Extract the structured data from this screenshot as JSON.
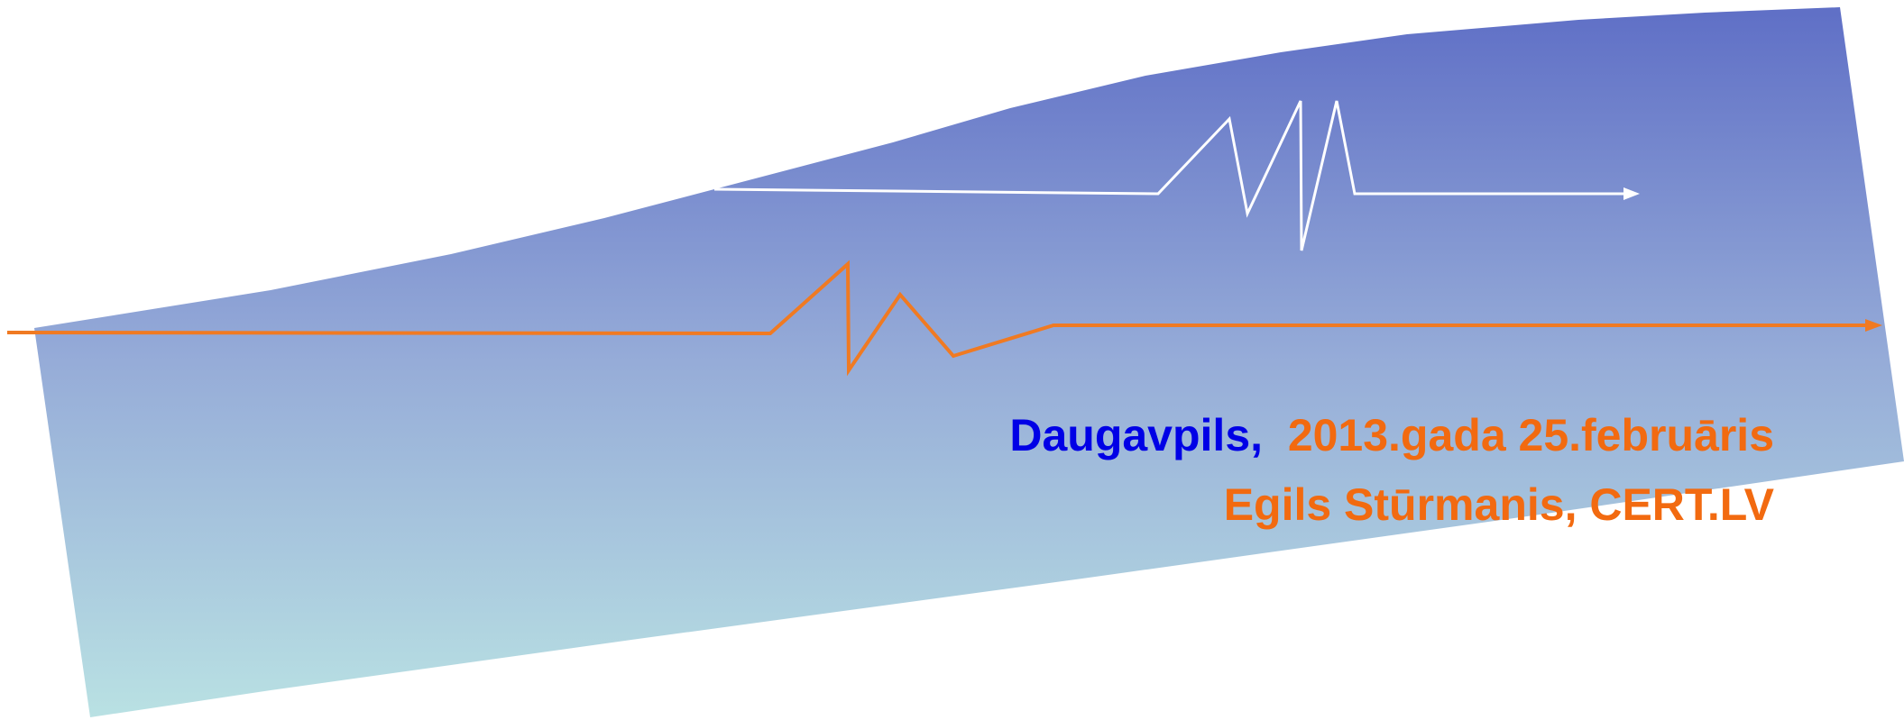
{
  "caption": {
    "place": "Daugavpils,",
    "date": "2013.gada 25.februāris",
    "author": "Egils Stūrmanis, CERT.LV"
  },
  "colors": {
    "band_top": "#5F6FC6",
    "band_bottom": "#B9E1E3",
    "signal_orange": "#F07A22",
    "signal_white": "#FFFFFF",
    "place_text": "#0000E6",
    "date_text": "#F26A10"
  }
}
